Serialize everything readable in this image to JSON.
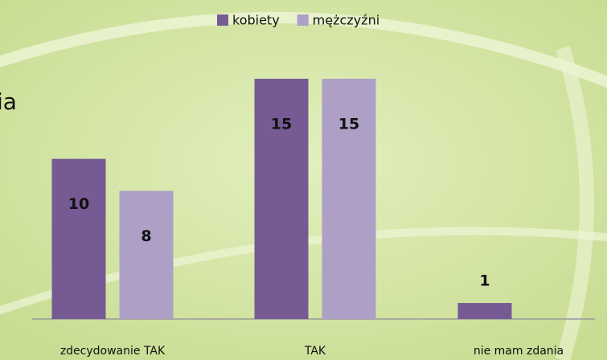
{
  "chart_data": {
    "type": "bar",
    "annotation": "ia",
    "categories": [
      "zdecydowanie TAK",
      "TAK",
      "nie mam zdania"
    ],
    "series": [
      {
        "name": "kobiety",
        "color": "#765a94",
        "values": [
          10,
          15,
          1
        ]
      },
      {
        "name": "mężczyźni",
        "color": "#ad9fc6",
        "values": [
          8,
          15,
          null
        ]
      }
    ],
    "ylim": [
      0,
      15
    ],
    "legend": "top"
  }
}
